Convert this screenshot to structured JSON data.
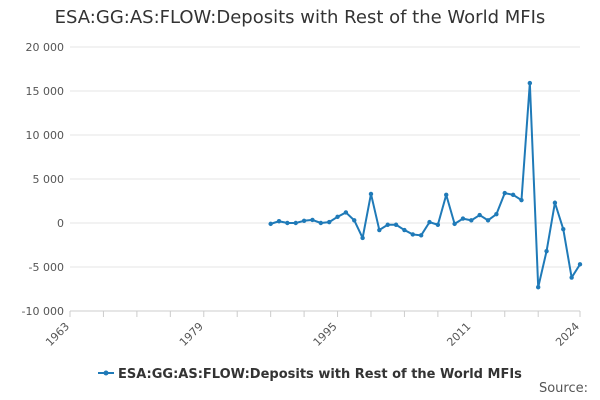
{
  "chart_data": {
    "type": "line",
    "title": "ESA:GG:AS:FLOW:Deposits with Rest of the World MFIs",
    "xlabel": "",
    "ylabel": "",
    "xlim": [
      1963,
      2024
    ],
    "ylim": [
      -10000,
      20000
    ],
    "x_ticks": [
      1963,
      1979,
      1995,
      2011,
      2024
    ],
    "x_minor_ticks": [
      1963,
      1967,
      1971,
      1975,
      1979,
      1983,
      1987,
      1991,
      1995,
      1999,
      2003,
      2007,
      2011,
      2015,
      2019,
      2024
    ],
    "y_ticks": [
      -10000,
      -5000,
      0,
      5000,
      10000,
      15000,
      20000
    ],
    "y_tick_labels": [
      "-10 000",
      "-5 000",
      "0",
      "5 000",
      "10 000",
      "15 000",
      "20 000"
    ],
    "grid": true,
    "legend": "bottom",
    "series": [
      {
        "name": "ESA:GG:AS:FLOW:Deposits with Rest of the World MFIs",
        "color": "#1f7ab8",
        "x": [
          1987,
          1988,
          1989,
          1990,
          1991,
          1992,
          1993,
          1994,
          1995,
          1996,
          1997,
          1998,
          1999,
          2000,
          2001,
          2002,
          2003,
          2004,
          2005,
          2006,
          2007,
          2008,
          2009,
          2010,
          2011,
          2012,
          2013,
          2014,
          2015,
          2016,
          2017,
          2018,
          2019,
          2020,
          2021,
          2022,
          2023,
          2024
        ],
        "values": [
          -100,
          200,
          0,
          0,
          250,
          350,
          0,
          100,
          700,
          1200,
          300,
          -1700,
          3300,
          -800,
          -200,
          -200,
          -800,
          -1300,
          -1400,
          100,
          -200,
          3200,
          -100,
          500,
          300,
          900,
          300,
          1000,
          3400,
          3200,
          2600,
          15900,
          -7300,
          -3200,
          2300,
          -700,
          -6200,
          -4700
        ]
      }
    ]
  },
  "source_label": "Source:"
}
